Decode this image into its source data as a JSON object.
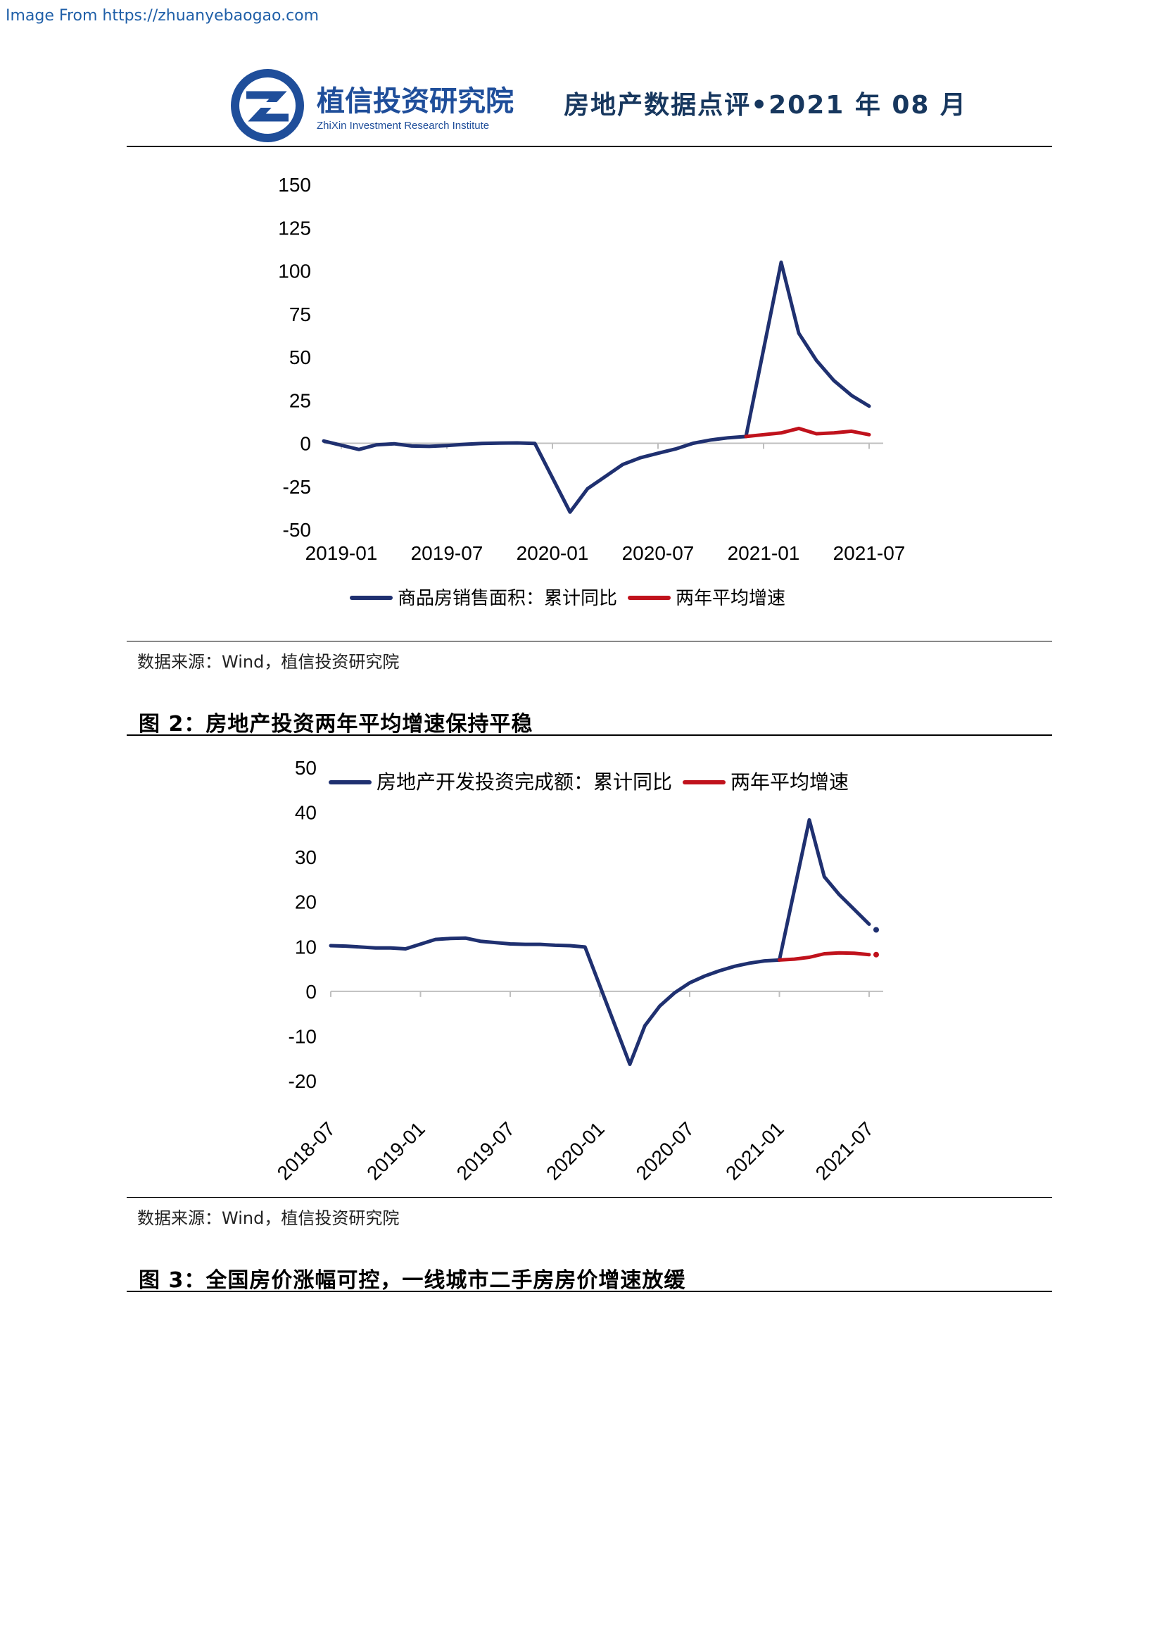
{
  "watermark": "Image From https://zhuanyebaogao.com",
  "header": {
    "logo_cn": "植信投资研究院",
    "logo_en": "ZhiXin Investment Research Institute",
    "title": "房地产数据点评•2021 年 08 月"
  },
  "chart1": {
    "source": "数据来源：Wind，植信投资研究院"
  },
  "figure2": {
    "title": "图 2：房地产投资两年平均增速保持平稳",
    "source": "数据来源：Wind，植信投资研究院"
  },
  "figure3": {
    "title": "图 3：全国房价涨幅可控，一线城市二手房房价增速放缓"
  },
  "colors": {
    "navy": "#1f3070",
    "red": "#c0121c",
    "header_blue": "#17375e"
  },
  "chart_data": [
    {
      "type": "line",
      "x_start": "2018-12",
      "x_end": "2021-07",
      "x_ticks": [
        "2019-01",
        "2019-07",
        "2020-01",
        "2020-07",
        "2021-01",
        "2021-07"
      ],
      "ylim": [
        -50,
        150
      ],
      "y_ticks": [
        "150",
        "125",
        "100",
        "75",
        "50",
        "25",
        "0",
        "-25",
        "-50"
      ],
      "legend_position": "bottom",
      "series": [
        {
          "name": "商品房销售面积：累计同比",
          "color": "#1f3070",
          "points": [
            [
              "2018-12",
              1.3
            ],
            [
              "2019-02",
              -3.6
            ],
            [
              "2019-03",
              -0.9
            ],
            [
              "2019-04",
              -0.3
            ],
            [
              "2019-05",
              -1.6
            ],
            [
              "2019-06",
              -1.8
            ],
            [
              "2019-07",
              -1.3
            ],
            [
              "2019-08",
              -0.6
            ],
            [
              "2019-09",
              -0.1
            ],
            [
              "2019-10",
              0.1
            ],
            [
              "2019-11",
              0.2
            ],
            [
              "2019-12",
              -0.1
            ],
            [
              "2020-02",
              -39.9
            ],
            [
              "2020-03",
              -26.3
            ],
            [
              "2020-04",
              -19.3
            ],
            [
              "2020-05",
              -12.3
            ],
            [
              "2020-06",
              -8.4
            ],
            [
              "2020-07",
              -5.8
            ],
            [
              "2020-08",
              -3.3
            ],
            [
              "2020-09",
              0.0
            ],
            [
              "2020-10",
              1.9
            ],
            [
              "2020-11",
              3.2
            ],
            [
              "2020-12",
              3.9
            ],
            [
              "2021-02",
              104.9
            ],
            [
              "2021-03",
              63.8
            ],
            [
              "2021-04",
              48.1
            ],
            [
              "2021-05",
              36.3
            ],
            [
              "2021-06",
              27.7
            ],
            [
              "2021-07",
              21.5
            ]
          ]
        },
        {
          "name": "两年平均增速",
          "color": "#c0121c",
          "points": [
            [
              "2020-12",
              3.9
            ],
            [
              "2021-01",
              5.0
            ],
            [
              "2021-02",
              6.0
            ],
            [
              "2021-03",
              8.6
            ],
            [
              "2021-04",
              5.5
            ],
            [
              "2021-05",
              6.0
            ],
            [
              "2021-06",
              7.0
            ],
            [
              "2021-07",
              5.0
            ]
          ]
        }
      ]
    },
    {
      "type": "line",
      "x_start": "2018-07",
      "x_end": "2021-07",
      "x_ticks": [
        "2018-07",
        "2019-01",
        "2019-07",
        "2020-01",
        "2020-07",
        "2021-01",
        "2021-07"
      ],
      "ylim": [
        -20,
        50
      ],
      "y_ticks": [
        "50",
        "40",
        "30",
        "20",
        "10",
        "0",
        "-10",
        "-20"
      ],
      "legend_position": "top",
      "series": [
        {
          "name": "房地产开发投资完成额：累计同比",
          "color": "#1f3070",
          "points": [
            [
              "2018-07",
              10.2
            ],
            [
              "2018-08",
              10.1
            ],
            [
              "2018-10",
              9.7
            ],
            [
              "2018-11",
              9.7
            ],
            [
              "2018-12",
              9.5
            ],
            [
              "2019-02",
              11.6
            ],
            [
              "2019-03",
              11.8
            ],
            [
              "2019-04",
              11.9
            ],
            [
              "2019-05",
              11.2
            ],
            [
              "2019-06",
              10.9
            ],
            [
              "2019-07",
              10.6
            ],
            [
              "2019-08",
              10.5
            ],
            [
              "2019-09",
              10.5
            ],
            [
              "2019-10",
              10.3
            ],
            [
              "2019-11",
              10.2
            ],
            [
              "2019-12",
              9.9
            ],
            [
              "2020-03",
              -16.3
            ],
            [
              "2020-04",
              -7.7
            ],
            [
              "2020-05",
              -3.3
            ],
            [
              "2020-06",
              -0.3
            ],
            [
              "2020-07",
              1.9
            ],
            [
              "2020-08",
              3.4
            ],
            [
              "2020-09",
              4.6
            ],
            [
              "2020-10",
              5.6
            ],
            [
              "2020-11",
              6.3
            ],
            [
              "2020-12",
              6.8
            ],
            [
              "2021-01",
              7.0
            ],
            [
              "2021-03",
              38.3
            ],
            [
              "2021-04",
              25.6
            ],
            [
              "2021-05",
              21.6
            ],
            [
              "2021-06",
              18.3
            ],
            [
              "2021-07",
              15.0
            ]
          ]
        },
        {
          "name": "两年平均增速",
          "color": "#c0121c",
          "points": [
            [
              "2021-01",
              7.0
            ],
            [
              "2021-02",
              7.2
            ],
            [
              "2021-03",
              7.6
            ],
            [
              "2021-04",
              8.4
            ],
            [
              "2021-05",
              8.6
            ],
            [
              "2021-06",
              8.5
            ],
            [
              "2021-07",
              8.2
            ]
          ]
        }
      ]
    }
  ]
}
